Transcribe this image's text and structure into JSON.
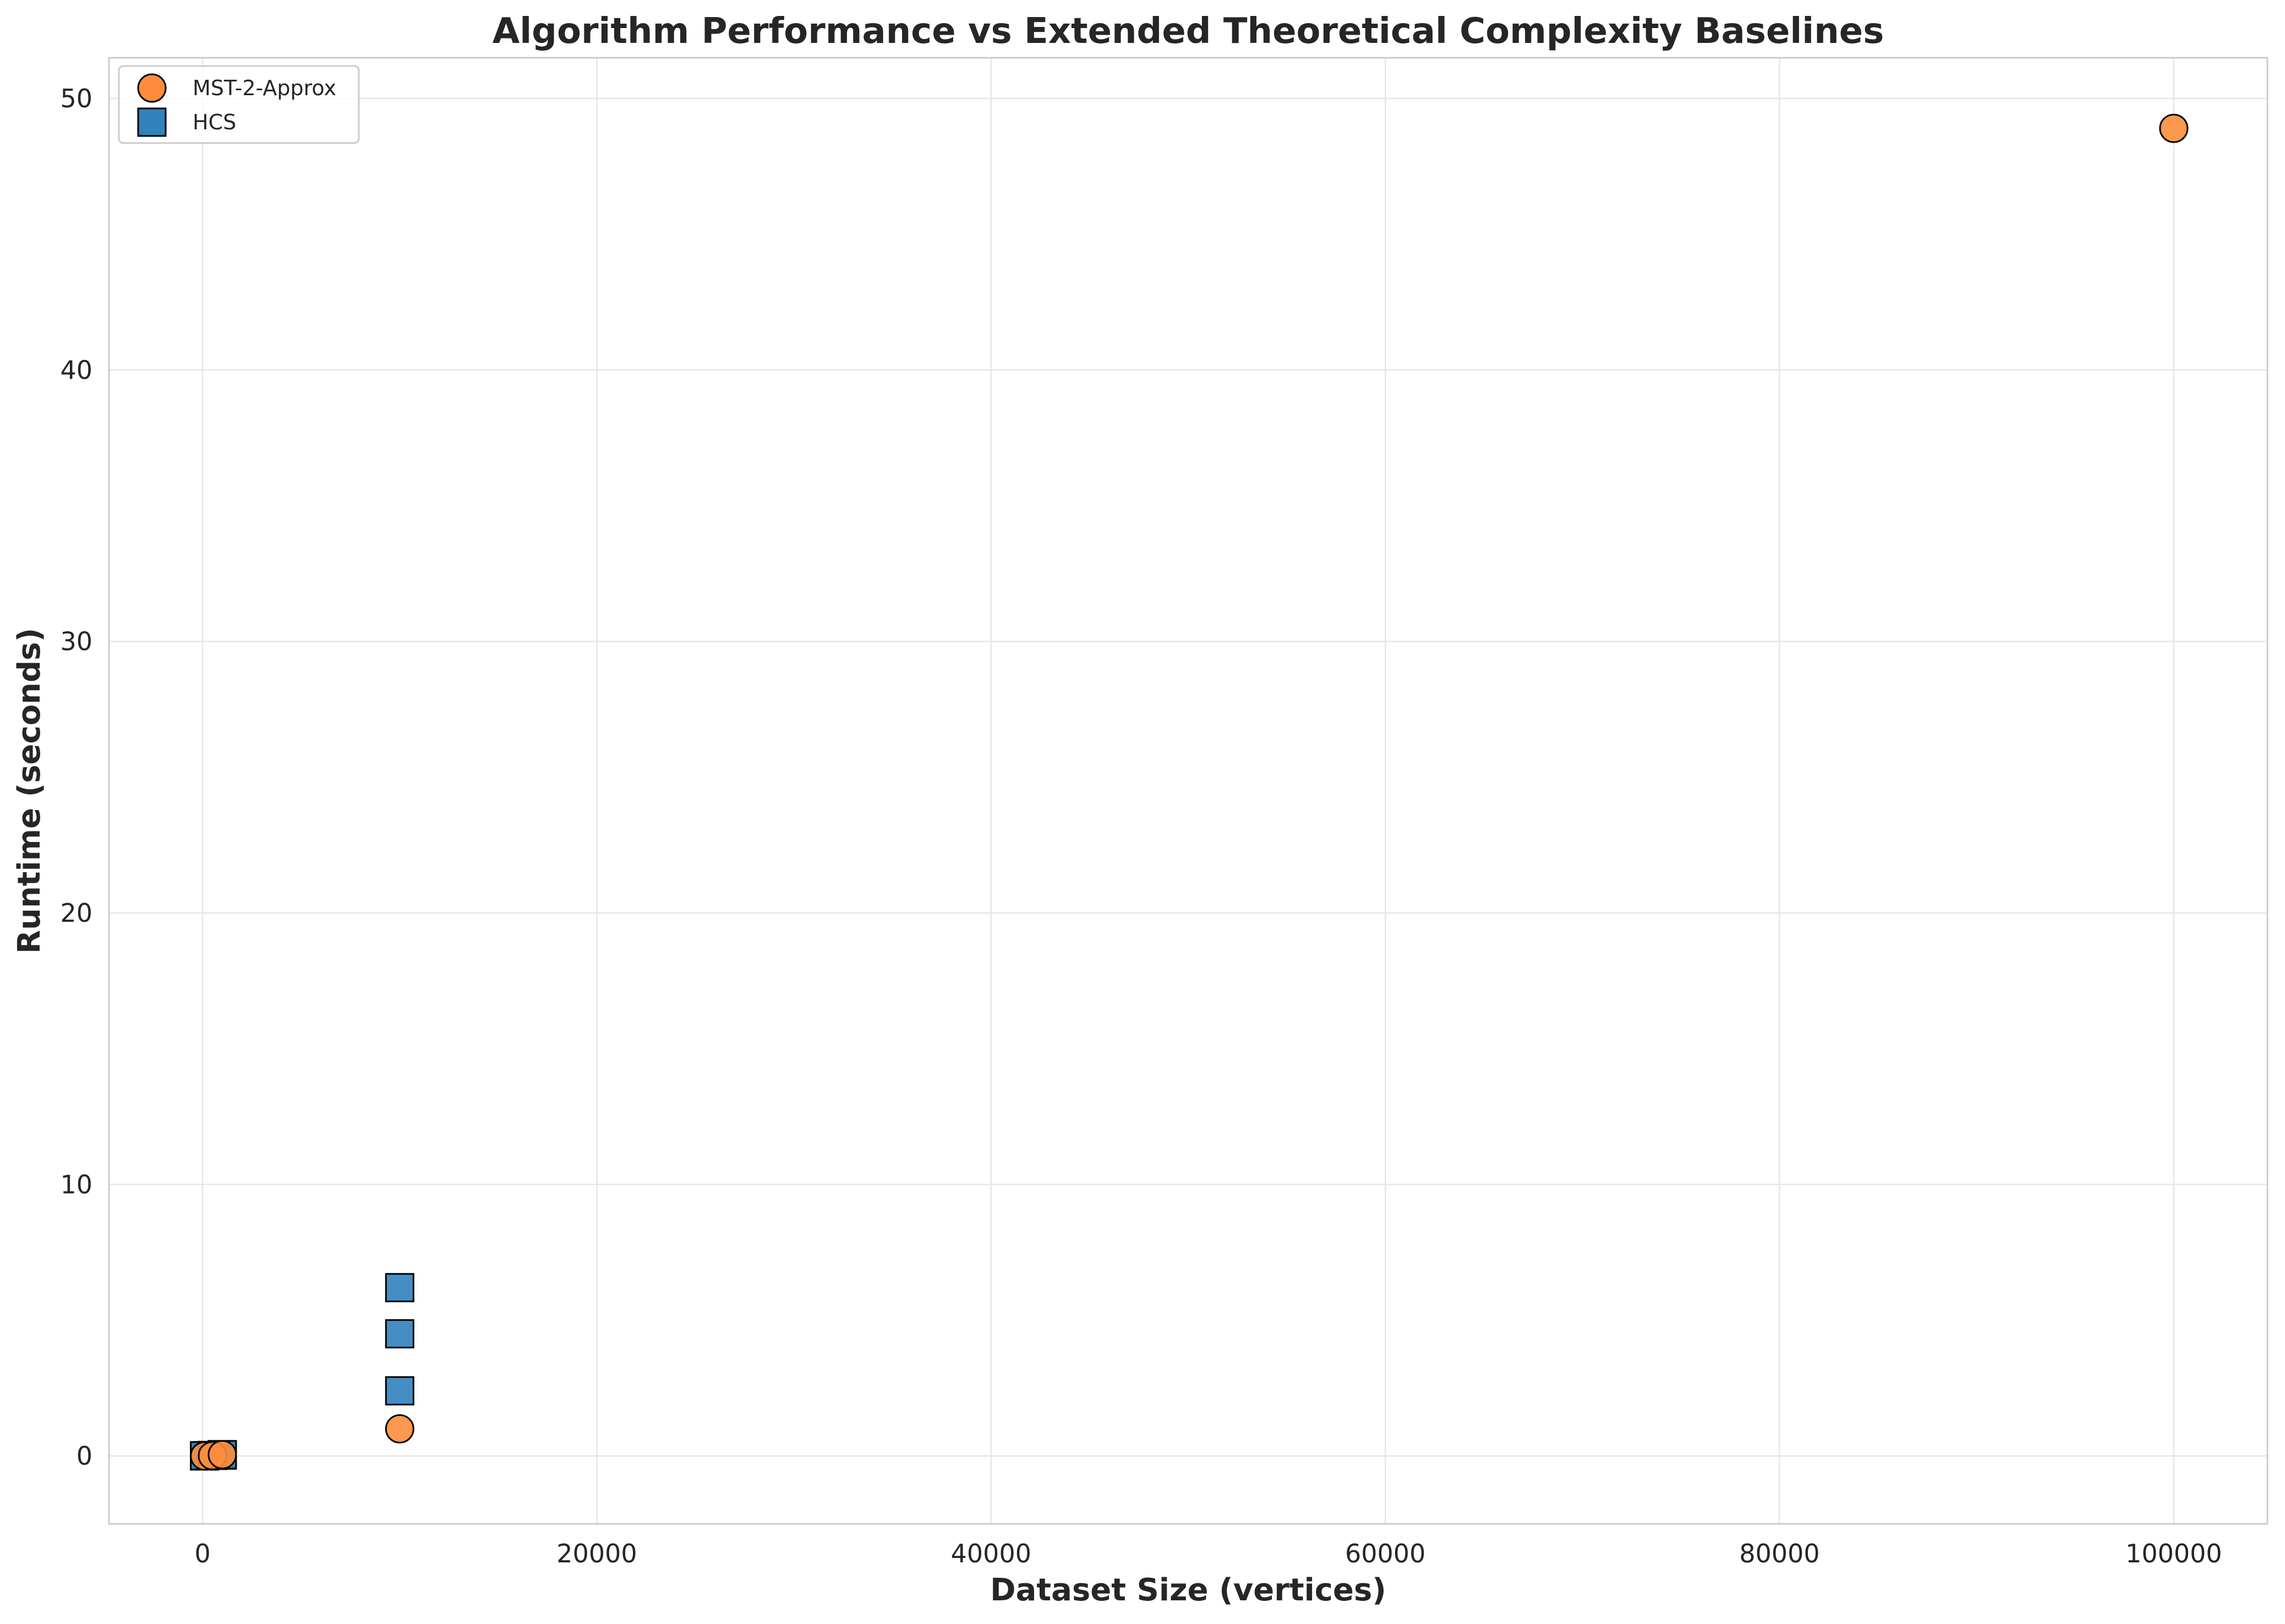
{
  "chart_data": {
    "type": "scatter",
    "title": "Algorithm Performance vs Extended Theoretical Complexity Baselines",
    "xlabel": "Dataset Size (vertices)",
    "ylabel": "Runtime (seconds)",
    "xlim": [
      -4750,
      104750
    ],
    "ylim": [
      -2.5,
      51.5
    ],
    "xticks": [
      0,
      20000,
      40000,
      60000,
      80000,
      100000
    ],
    "yticks": [
      0,
      10,
      20,
      30,
      40,
      50
    ],
    "xtick_labels": [
      "0",
      "20000",
      "40000",
      "60000",
      "80000",
      "100000"
    ],
    "ytick_labels": [
      "0",
      "10",
      "20",
      "30",
      "40",
      "50"
    ],
    "grid": true,
    "legend_position": "top-left",
    "series": [
      {
        "name": "MST-2-Approx",
        "marker": "circle",
        "color": "#fd8d3c",
        "points": [
          {
            "x": 100,
            "y": 0.0
          },
          {
            "x": 500,
            "y": 0.01
          },
          {
            "x": 1000,
            "y": 0.05
          },
          {
            "x": 10000,
            "y": 1.0
          },
          {
            "x": 100000,
            "y": 48.9
          }
        ]
      },
      {
        "name": "HCS",
        "marker": "square",
        "color": "#3182bd",
        "points": [
          {
            "x": 100,
            "y": 0.0
          },
          {
            "x": 100,
            "y": 0.01
          },
          {
            "x": 500,
            "y": 0.02
          },
          {
            "x": 1000,
            "y": 0.03
          },
          {
            "x": 1000,
            "y": 0.05
          },
          {
            "x": 10000,
            "y": 2.4
          },
          {
            "x": 10000,
            "y": 4.5
          },
          {
            "x": 10000,
            "y": 6.2
          }
        ]
      }
    ]
  }
}
